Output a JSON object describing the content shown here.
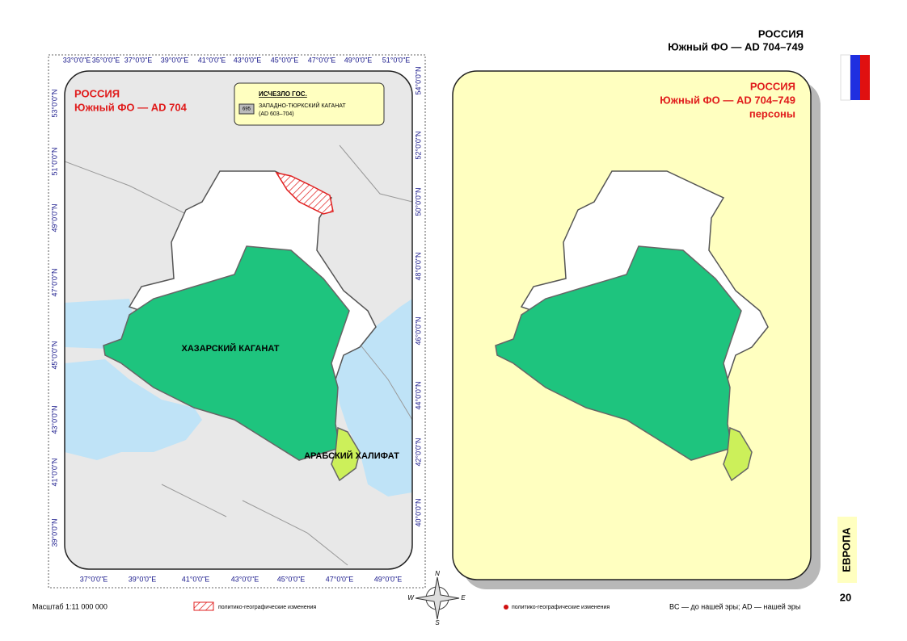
{
  "header": {
    "title": "РОССИЯ",
    "subtitle": "Южный ФО — AD 704–749"
  },
  "left_map": {
    "title": "РОССИЯ",
    "subtitle": "Южный ФО —  AD 704",
    "legend": {
      "heading": "ИСЧЕЗЛО ГОС.",
      "badge": "695",
      "name": "ЗАПАДНО-ТЮРКСКИЙ КАГАНАТ",
      "period": "(AD 603–704)"
    },
    "labels": [
      "ХАЗАРСКИЙ КАГАНАТ",
      "АРАБСКИЙ ХАЛИФАТ"
    ],
    "top_ticks": [
      "33°0'0\"E",
      "35°0'0\"E",
      "37°0'0\"E",
      "39°0'0\"E",
      "41°0'0\"E",
      "43°0'0\"E",
      "45°0'0\"E",
      "47°0'0\"E",
      "49°0'0\"E",
      "51°0'0\"E"
    ],
    "bottom_ticks": [
      "37°0'0\"E",
      "39°0'0\"E",
      "41°0'0\"E",
      "43°0'0\"E",
      "45°0'0\"E",
      "47°0'0\"E",
      "49°0'0\"E"
    ],
    "left_ticks": [
      "53°0'0\"N",
      "51°0'0\"N",
      "49°0'0\"N",
      "47°0'0\"N",
      "45°0'0\"N",
      "43°0'0\"N",
      "41°0'0\"N",
      "39°0'0\"N"
    ],
    "right_ticks": [
      "54°0'0\"N",
      "52°0'0\"N",
      "50°0'0\"N",
      "48°0'0\"N",
      "46°0'0\"N",
      "44°0'0\"N",
      "42°0'0\"N",
      "40°0'0\"N"
    ]
  },
  "right_map": {
    "title": "РОССИЯ",
    "subtitle": "Южный ФО —  AD 704–749",
    "caption": "персоны"
  },
  "footer": {
    "scale": "Масштаб 1:11 000 000",
    "hatch_legend": "политико-географические изменения",
    "dot_legend": "политико-географические изменения",
    "note": "BC — до нашей эры; AD — нашей эры"
  },
  "compass": [
    "N",
    "W",
    "E",
    "S"
  ],
  "side": {
    "section": "ЕВРОПА",
    "page": "20"
  }
}
